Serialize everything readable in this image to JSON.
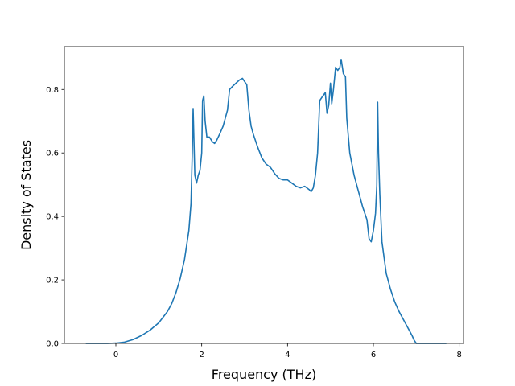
{
  "chart_data": {
    "type": "line",
    "xlabel": "Frequency (THz)",
    "ylabel": "Density of States",
    "xlim": [
      -1.2,
      8.1
    ],
    "ylim": [
      0.0,
      0.935
    ],
    "x_ticks": [
      0,
      2,
      4,
      6,
      8
    ],
    "y_ticks": [
      0.0,
      0.2,
      0.4,
      0.6,
      0.8
    ],
    "x_tick_labels": [
      "0",
      "2",
      "4",
      "6",
      "8"
    ],
    "y_tick_labels": [
      "0.0",
      "0.2",
      "0.4",
      "0.6",
      "0.8"
    ],
    "grid": false,
    "legend": "none",
    "series": [
      {
        "color": "#1f77b4",
        "x": [
          -0.7,
          -0.4,
          -0.2,
          0.0,
          0.2,
          0.4,
          0.6,
          0.8,
          1.0,
          1.2,
          1.3,
          1.4,
          1.5,
          1.6,
          1.7,
          1.75,
          1.78,
          1.8,
          1.84,
          1.88,
          1.92,
          1.96,
          2.0,
          2.02,
          2.05,
          2.08,
          2.12,
          2.18,
          2.25,
          2.3,
          2.35,
          2.42,
          2.5,
          2.6,
          2.65,
          2.72,
          2.8,
          2.88,
          2.95,
          3.0,
          3.05,
          3.1,
          3.15,
          3.2,
          3.3,
          3.4,
          3.5,
          3.6,
          3.7,
          3.8,
          3.9,
          4.0,
          4.1,
          4.2,
          4.3,
          4.4,
          4.5,
          4.55,
          4.6,
          4.65,
          4.7,
          4.75,
          4.8,
          4.88,
          4.92,
          4.96,
          5.0,
          5.03,
          5.07,
          5.12,
          5.17,
          5.22,
          5.25,
          5.3,
          5.35,
          5.38,
          5.45,
          5.55,
          5.65,
          5.75,
          5.8,
          5.85,
          5.9,
          5.95,
          6.0,
          6.05,
          6.08,
          6.1,
          6.12,
          6.15,
          6.2,
          6.3,
          6.4,
          6.5,
          6.6,
          6.7,
          6.8,
          6.9,
          6.95,
          7.0,
          7.05,
          7.3,
          7.5,
          7.7
        ],
        "y": [
          0.0,
          0.0,
          0.0,
          0.001,
          0.004,
          0.012,
          0.025,
          0.042,
          0.065,
          0.1,
          0.125,
          0.16,
          0.205,
          0.265,
          0.355,
          0.44,
          0.6,
          0.74,
          0.53,
          0.505,
          0.53,
          0.545,
          0.6,
          0.765,
          0.78,
          0.7,
          0.65,
          0.65,
          0.635,
          0.63,
          0.64,
          0.66,
          0.685,
          0.735,
          0.8,
          0.81,
          0.82,
          0.83,
          0.835,
          0.825,
          0.815,
          0.735,
          0.685,
          0.66,
          0.62,
          0.585,
          0.565,
          0.555,
          0.535,
          0.52,
          0.515,
          0.515,
          0.505,
          0.495,
          0.49,
          0.495,
          0.485,
          0.478,
          0.49,
          0.53,
          0.6,
          0.765,
          0.775,
          0.79,
          0.725,
          0.75,
          0.82,
          0.755,
          0.8,
          0.87,
          0.86,
          0.87,
          0.895,
          0.85,
          0.84,
          0.71,
          0.6,
          0.53,
          0.48,
          0.43,
          0.41,
          0.39,
          0.33,
          0.32,
          0.355,
          0.41,
          0.5,
          0.76,
          0.6,
          0.47,
          0.32,
          0.22,
          0.17,
          0.13,
          0.1,
          0.075,
          0.05,
          0.025,
          0.01,
          0.0,
          0.0,
          0.0,
          0.0,
          0.0
        ]
      }
    ]
  }
}
